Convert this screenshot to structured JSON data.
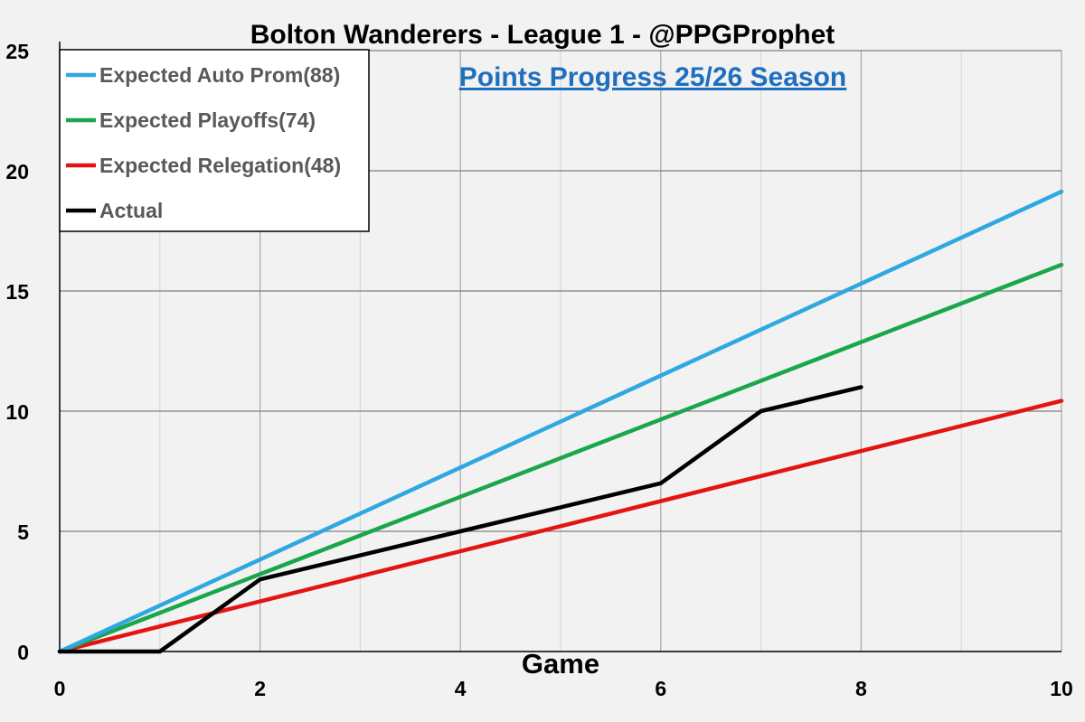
{
  "chart_data": {
    "type": "line",
    "title": "Bolton Wanderers - League 1 - @PPGProphet",
    "subtitle": "Points Progress 25/26 Season",
    "xlabel": "Game",
    "ylabel": "",
    "xlim": [
      0,
      10
    ],
    "ylim": [
      0,
      25
    ],
    "x_ticks": [
      0,
      2,
      4,
      6,
      8,
      10
    ],
    "y_ticks": [
      0,
      5,
      10,
      15,
      20,
      25
    ],
    "x_minor_grid": [
      1,
      3,
      5,
      7,
      9
    ],
    "grid": true,
    "legend_position": "top-left",
    "series": [
      {
        "name": "Expected Auto Prom(88)",
        "color": "#2ea8e0",
        "x": [
          0,
          10
        ],
        "y": [
          0,
          19.13
        ]
      },
      {
        "name": "Expected Playoffs(74)",
        "color": "#1aa64a",
        "x": [
          0,
          10
        ],
        "y": [
          0,
          16.09
        ]
      },
      {
        "name": "Expected Relegation(48)",
        "color": "#e31414",
        "x": [
          0,
          10
        ],
        "y": [
          0,
          10.43
        ]
      },
      {
        "name": "Actual",
        "color": "#000000",
        "x": [
          0,
          1,
          2,
          3,
          4,
          5,
          6,
          7,
          8
        ],
        "y": [
          0,
          0,
          3,
          4,
          5,
          6,
          7,
          10,
          11
        ]
      }
    ]
  }
}
